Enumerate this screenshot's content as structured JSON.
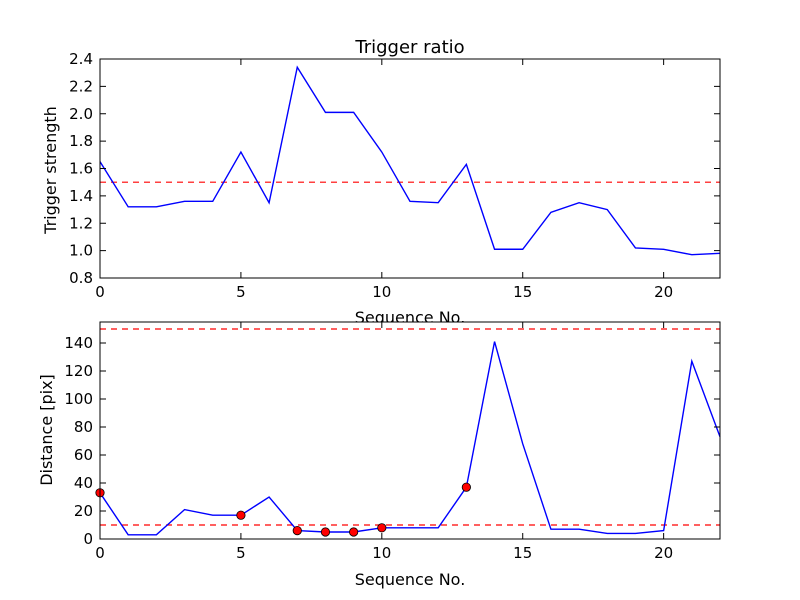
{
  "chart_data": [
    {
      "type": "line",
      "title": "Trigger ratio",
      "xlabel": "Sequence No.",
      "ylabel": "Trigger strength",
      "xlim": [
        0,
        22
      ],
      "ylim": [
        0.8,
        2.4
      ],
      "xticks": [
        0,
        5,
        10,
        15,
        20
      ],
      "yticks": [
        0.8,
        1.0,
        1.2,
        1.4,
        1.6,
        1.8,
        2.0,
        2.2,
        2.4
      ],
      "ytick_labels": [
        "0.8",
        "1.0",
        "1.2",
        "1.4",
        "1.6",
        "1.8",
        "2.0",
        "2.2",
        "2.4"
      ],
      "grid": false,
      "series": [
        {
          "color": "#0000ff",
          "x": [
            0,
            1,
            2,
            3,
            4,
            5,
            6,
            7,
            8,
            9,
            10,
            11,
            12,
            13,
            14,
            15,
            16,
            17,
            18,
            19,
            20,
            21,
            22
          ],
          "y": [
            1.65,
            1.32,
            1.32,
            1.36,
            1.36,
            1.72,
            1.35,
            2.34,
            2.01,
            2.01,
            1.72,
            1.36,
            1.35,
            1.63,
            1.01,
            1.01,
            1.28,
            1.35,
            1.3,
            1.02,
            1.01,
            0.97,
            0.98
          ]
        }
      ],
      "hlines": [
        {
          "y": 1.5,
          "color": "#ff0000",
          "style": "dashed"
        }
      ]
    },
    {
      "type": "line",
      "title": "",
      "xlabel": "Sequence No.",
      "ylabel": "Distance [pix]",
      "xlim": [
        0,
        22
      ],
      "ylim": [
        0,
        155
      ],
      "xticks": [
        0,
        5,
        10,
        15,
        20
      ],
      "yticks": [
        0,
        20,
        40,
        60,
        80,
        100,
        120,
        140
      ],
      "ytick_labels": [
        "0",
        "20",
        "40",
        "60",
        "80",
        "100",
        "120",
        "140"
      ],
      "grid": false,
      "series": [
        {
          "color": "#0000ff",
          "x": [
            0,
            1,
            2,
            3,
            4,
            5,
            6,
            7,
            8,
            9,
            10,
            11,
            12,
            13,
            14,
            15,
            16,
            17,
            18,
            19,
            20,
            21,
            22
          ],
          "y": [
            33,
            3,
            3,
            21,
            17,
            17,
            30,
            6,
            5,
            5,
            8,
            8,
            8,
            37,
            141,
            68,
            7,
            7,
            4,
            4,
            6,
            127,
            73
          ]
        }
      ],
      "markers": {
        "color": "#ff0000",
        "x": [
          0,
          5,
          7,
          8,
          9,
          10,
          13
        ],
        "y": [
          33,
          17,
          6,
          5,
          5,
          8,
          37
        ]
      },
      "hlines": [
        {
          "y": 150,
          "color": "#ff0000",
          "style": "dashed"
        },
        {
          "y": 10,
          "color": "#ff0000",
          "style": "dashed"
        }
      ]
    }
  ]
}
